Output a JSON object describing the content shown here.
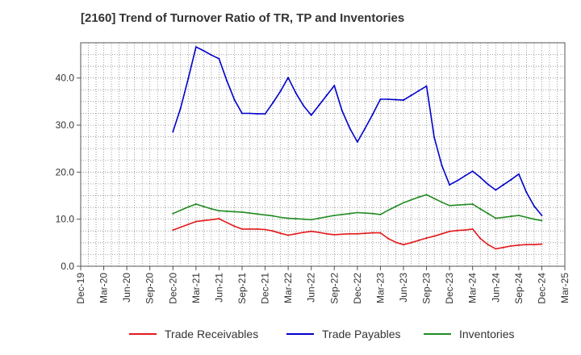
{
  "title": "[2160]  Trend of Turnover Ratio of TR, TP and Inventories",
  "chart_data": {
    "type": "line",
    "title": "[2160]  Trend of Turnover Ratio of TR, TP and Inventories",
    "xlabel": "",
    "ylabel": "",
    "x_ticks": [
      "Dec-19",
      "Mar-20",
      "Jun-20",
      "Sep-20",
      "Dec-20",
      "Mar-21",
      "Jun-21",
      "Sep-21",
      "Dec-21",
      "Mar-22",
      "Jun-22",
      "Sep-22",
      "Dec-22",
      "Mar-23",
      "Jun-23",
      "Sep-23",
      "Dec-23",
      "Mar-24",
      "Jun-24",
      "Sep-24",
      "Dec-24",
      "Mar-25"
    ],
    "y_ticks": [
      "0.0",
      "10.0",
      "20.0",
      "30.0",
      "40.0"
    ],
    "ylim": [
      0,
      47.5
    ],
    "grid": true,
    "legend_position": "bottom",
    "x": [
      "Dec-20",
      "Jan-21",
      "Feb-21",
      "Mar-21",
      "Apr-21",
      "May-21",
      "Jun-21",
      "Jul-21",
      "Aug-21",
      "Sep-21",
      "Oct-21",
      "Nov-21",
      "Dec-21",
      "Jan-22",
      "Feb-22",
      "Mar-22",
      "Apr-22",
      "May-22",
      "Jun-22",
      "Jul-22",
      "Aug-22",
      "Sep-22",
      "Oct-22",
      "Nov-22",
      "Dec-22",
      "Jan-23",
      "Feb-23",
      "Mar-23",
      "Apr-23",
      "May-23",
      "Jun-23",
      "Jul-23",
      "Aug-23",
      "Sep-23",
      "Oct-23",
      "Nov-23",
      "Dec-23",
      "Jan-24",
      "Feb-24",
      "Mar-24",
      "Apr-24",
      "May-24",
      "Jun-24",
      "Jul-24",
      "Aug-24",
      "Sep-24",
      "Oct-24",
      "Nov-24",
      "Dec-24"
    ],
    "series": [
      {
        "name": "Trade Receivables",
        "color": "#e31a1c",
        "values": [
          7.7,
          8.3,
          8.9,
          9.5,
          9.7,
          9.9,
          10.1,
          9.3,
          8.5,
          7.9,
          7.9,
          7.9,
          7.8,
          7.5,
          7.0,
          6.6,
          6.9,
          7.2,
          7.4,
          7.2,
          6.9,
          6.7,
          6.8,
          6.9,
          6.9,
          7.0,
          7.1,
          7.1,
          5.9,
          5.1,
          4.6,
          5.0,
          5.5,
          6.0,
          6.4,
          6.9,
          7.4,
          7.6,
          7.7,
          7.9,
          5.9,
          4.6,
          3.7,
          4.0,
          4.3,
          4.5,
          4.6,
          4.6,
          4.7
        ]
      },
      {
        "name": "Trade Payables",
        "color": "#0000cc",
        "values": [
          28.6,
          33.6,
          39.9,
          46.6,
          45.8,
          44.9,
          44.1,
          39.5,
          35.4,
          32.5,
          32.5,
          32.4,
          32.4,
          34.7,
          37.2,
          40.1,
          36.8,
          34.1,
          32.1,
          34.2,
          36.3,
          38.4,
          33.1,
          29.4,
          26.4,
          29.3,
          32.3,
          35.5,
          35.5,
          35.4,
          35.3,
          36.3,
          37.3,
          38.3,
          27.4,
          21.4,
          17.3,
          18.2,
          19.2,
          20.2,
          18.9,
          17.4,
          16.2,
          17.3,
          18.4,
          19.6,
          15.7,
          12.8,
          10.8
        ]
      },
      {
        "name": "Inventories",
        "color": "#228b22",
        "values": [
          11.2,
          11.9,
          12.6,
          13.2,
          12.7,
          12.2,
          11.8,
          11.7,
          11.6,
          11.5,
          11.3,
          11.1,
          10.9,
          10.7,
          10.4,
          10.2,
          10.1,
          10.0,
          9.9,
          10.2,
          10.5,
          10.8,
          11.0,
          11.2,
          11.4,
          11.3,
          11.2,
          11.0,
          11.9,
          12.7,
          13.5,
          14.1,
          14.7,
          15.2,
          14.4,
          13.6,
          12.9,
          13.0,
          13.1,
          13.2,
          12.2,
          11.2,
          10.2,
          10.4,
          10.6,
          10.8,
          10.4,
          10.0,
          9.7
        ]
      }
    ]
  }
}
